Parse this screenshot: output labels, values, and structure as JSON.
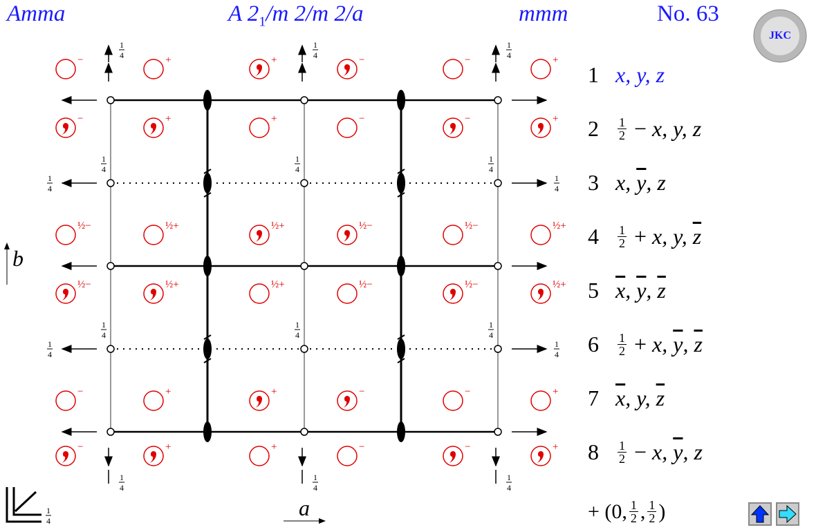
{
  "header": {
    "short_symbol": "Amma",
    "full_symbol": {
      "prefix": "A 2",
      "sub": "1",
      "suffix": "/m 2/m 2/a"
    },
    "point_group": "mmm",
    "number": "No. 63",
    "logo": "JKC"
  },
  "axes": {
    "a": "a",
    "b": "b"
  },
  "quarter": {
    "num": "1",
    "den": "4"
  },
  "symbols": [
    [
      {
        "comma": false,
        "sign": "−"
      },
      {
        "comma": false,
        "sign": "+"
      },
      {
        "comma": true,
        "sign": "+"
      },
      {
        "comma": true,
        "sign": "−"
      },
      {
        "comma": false,
        "sign": "−"
      },
      {
        "comma": false,
        "sign": "+"
      }
    ],
    [
      {
        "comma": true,
        "sign": "−"
      },
      {
        "comma": true,
        "sign": "+"
      },
      {
        "comma": false,
        "sign": "+"
      },
      {
        "comma": false,
        "sign": "−"
      },
      {
        "comma": true,
        "sign": "−"
      },
      {
        "comma": true,
        "sign": "+"
      }
    ],
    [
      {
        "comma": false,
        "sign": "½−"
      },
      {
        "comma": false,
        "sign": "½+"
      },
      {
        "comma": true,
        "sign": "½+"
      },
      {
        "comma": true,
        "sign": "½−"
      },
      {
        "comma": false,
        "sign": "½−"
      },
      {
        "comma": false,
        "sign": "½+"
      }
    ],
    [
      {
        "comma": true,
        "sign": "½−"
      },
      {
        "comma": true,
        "sign": "½+"
      },
      {
        "comma": false,
        "sign": "½+"
      },
      {
        "comma": false,
        "sign": "½−"
      },
      {
        "comma": true,
        "sign": "½−"
      },
      {
        "comma": true,
        "sign": "½+"
      }
    ],
    [
      {
        "comma": false,
        "sign": "−"
      },
      {
        "comma": false,
        "sign": "+"
      },
      {
        "comma": true,
        "sign": "+"
      },
      {
        "comma": true,
        "sign": "−"
      },
      {
        "comma": false,
        "sign": "−"
      },
      {
        "comma": false,
        "sign": "+"
      }
    ],
    [
      {
        "comma": true,
        "sign": "−"
      },
      {
        "comma": true,
        "sign": "+"
      },
      {
        "comma": false,
        "sign": "+"
      },
      {
        "comma": false,
        "sign": "−"
      },
      {
        "comma": true,
        "sign": "−"
      },
      {
        "comma": true,
        "sign": "+"
      }
    ]
  ],
  "positions": [
    {
      "number": "1",
      "highlight": true,
      "coords": [
        {
          "text": "x, y, z"
        }
      ]
    },
    {
      "number": "2",
      "coords": [
        {
          "num": "1",
          "den": "2"
        },
        {
          "op": " − "
        },
        {
          "text": "x, y, z"
        }
      ]
    },
    {
      "number": "3",
      "coords": [
        {
          "text": "x, "
        },
        {
          "text": "y",
          "bar": true
        },
        {
          "text": ", z"
        }
      ]
    },
    {
      "number": "4",
      "coords": [
        {
          "num": "1",
          "den": "2"
        },
        {
          "op": " + "
        },
        {
          "text": "x, y, "
        },
        {
          "text": "z",
          "bar": true
        }
      ]
    },
    {
      "number": "5",
      "coords": [
        {
          "text": "x",
          "bar": true
        },
        {
          "text": ", "
        },
        {
          "text": "y",
          "bar": true
        },
        {
          "text": ", "
        },
        {
          "text": "z",
          "bar": true
        }
      ]
    },
    {
      "number": "6",
      "coords": [
        {
          "num": "1",
          "den": "2"
        },
        {
          "op": " + "
        },
        {
          "text": "x, "
        },
        {
          "text": "y",
          "bar": true
        },
        {
          "text": ", "
        },
        {
          "text": "z",
          "bar": true
        }
      ]
    },
    {
      "number": "7",
      "coords": [
        {
          "text": "x",
          "bar": true
        },
        {
          "text": ", y, "
        },
        {
          "text": "z",
          "bar": true
        }
      ]
    },
    {
      "number": "8",
      "coords": [
        {
          "num": "1",
          "den": "2"
        },
        {
          "op": " − "
        },
        {
          "text": "x, "
        },
        {
          "text": "y",
          "bar": true
        },
        {
          "text": ", z"
        }
      ]
    }
  ],
  "centering": [
    {
      "op": "+ (0,"
    },
    {
      "num": "1",
      "den": "2"
    },
    {
      "op": ","
    },
    {
      "num": "1",
      "den": "2"
    },
    {
      "op": ")"
    }
  ]
}
